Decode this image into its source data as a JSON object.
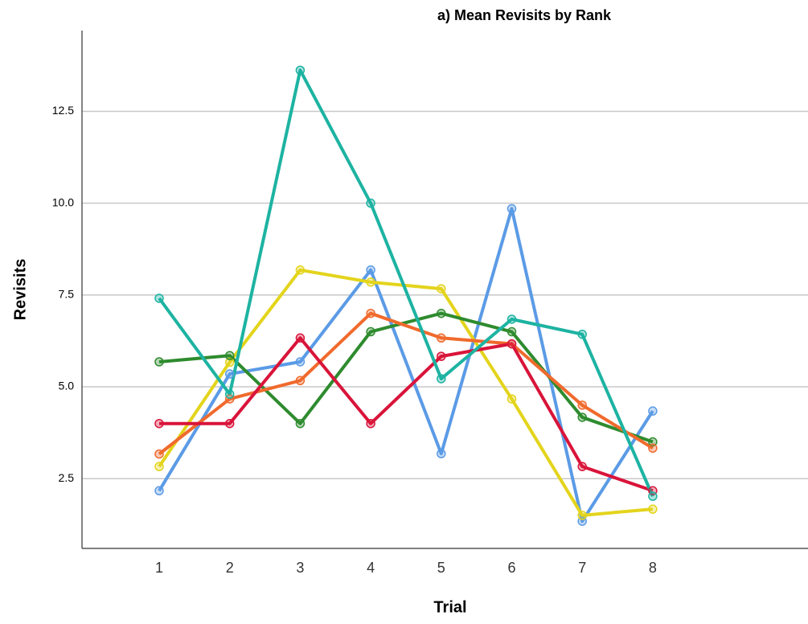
{
  "chart_data": {
    "type": "line",
    "title": "a) Mean Revisits by Rank",
    "x_label": "Trial",
    "y_label": "Revisits",
    "categories": [
      "1",
      "2",
      "3",
      "4",
      "5",
      "6",
      "7",
      "8"
    ],
    "series": [
      {
        "color": "#5b9be6",
        "values": [
          2.17,
          5.35,
          5.68,
          8.18,
          3.18,
          9.85,
          1.34,
          4.34
        ]
      },
      {
        "color": "#e3d41c",
        "values": [
          2.83,
          5.67,
          8.18,
          7.85,
          7.67,
          4.67,
          1.5,
          1.67
        ]
      },
      {
        "color": "#2e8b2e",
        "values": [
          5.68,
          5.85,
          4.0,
          6.5,
          7.0,
          6.5,
          4.17,
          3.5
        ]
      },
      {
        "color": "#f06a2d",
        "values": [
          3.17,
          4.67,
          5.17,
          7.0,
          6.33,
          6.17,
          4.5,
          3.33
        ]
      },
      {
        "color": "#d9143a",
        "values": [
          4.0,
          4.0,
          6.33,
          4.0,
          5.83,
          6.17,
          2.83,
          2.17
        ]
      },
      {
        "color": "#1db3a2",
        "values": [
          7.41,
          4.8,
          13.62,
          10.0,
          5.22,
          6.84,
          6.43,
          2.02
        ]
      }
    ],
    "ylim": [
      0.6,
      14.7
    ],
    "yticks": [
      2.5,
      {
        "value": 5,
        "label": "5.0"
      },
      7.5,
      {
        "value": 10,
        "label": "10.0"
      },
      12.5
    ],
    "grid": true
  }
}
